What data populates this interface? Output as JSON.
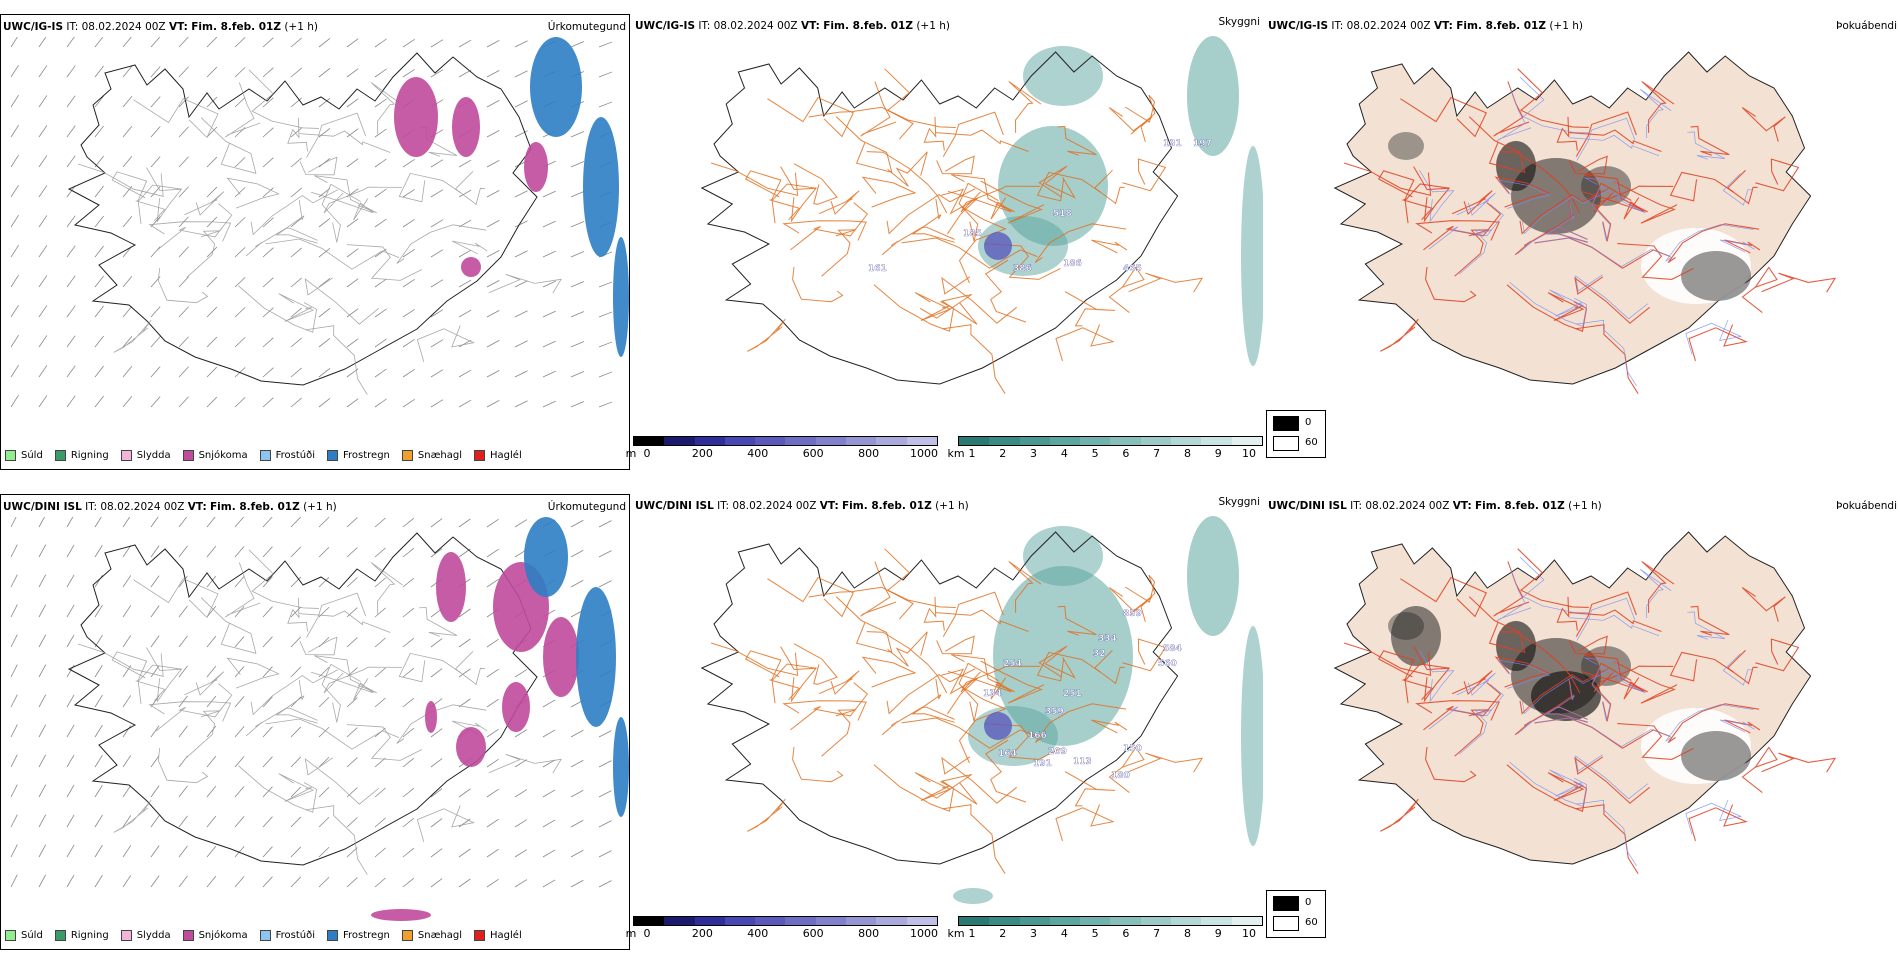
{
  "rows": [
    {
      "model": "UWC/IG-IS",
      "it_label": "IT:",
      "it_value": "08.02.2024 00Z",
      "vt_label": "VT:",
      "vt_value": "Fim. 8.feb. 01Z",
      "offset": "(+1 h)",
      "panel_titles": [
        "Úrkomutegund",
        "Skyggni",
        "Þokuábendi"
      ],
      "cloud_labels": [
        "518",
        "186",
        "386",
        "465",
        "197",
        "131",
        "185",
        "161"
      ],
      "cloud_values": [
        518,
        186,
        386,
        465,
        197,
        131,
        185,
        161
      ]
    },
    {
      "model": "UWC/DINI ISL",
      "it_label": "IT:",
      "it_value": "08.02.2024 00Z",
      "vt_label": "VT:",
      "vt_value": "Fim. 8.feb. 01Z",
      "offset": "(+1 h)",
      "panel_titles": [
        "Úrkomutegund",
        "Skyggni",
        "Þokuábendi"
      ],
      "cloud_labels": [
        "859",
        "334",
        "584",
        "560",
        "32",
        "254",
        "251",
        "359",
        "166",
        "164",
        "209",
        "191",
        "113",
        "150",
        "180",
        "134"
      ],
      "cloud_values": [
        859,
        334,
        584,
        560,
        32,
        254,
        251,
        359,
        166,
        164,
        209,
        191,
        113,
        150,
        180,
        134
      ]
    }
  ],
  "precip_legend": [
    {
      "label": "Súld",
      "color": "#90ee90"
    },
    {
      "label": "Rigning",
      "color": "#3a9a68"
    },
    {
      "label": "Slydda",
      "color": "#f4b6d6"
    },
    {
      "label": "Snjókoma",
      "color": "#c04a9c"
    },
    {
      "label": "Frostúði",
      "color": "#8ec4f0"
    },
    {
      "label": "Frostregn",
      "color": "#2e7ec4"
    },
    {
      "label": "Snæhagl",
      "color": "#f0a030"
    },
    {
      "label": "Haglél",
      "color": "#e02020"
    }
  ],
  "cloud_colorbar": {
    "unit": "m",
    "ticks": [
      "0",
      "200",
      "400",
      "600",
      "800",
      "1000"
    ],
    "colors": [
      "#000000",
      "#1a1a6e",
      "#2e2e9a",
      "#4848b4",
      "#5a5abc",
      "#6d6dc4",
      "#8080cc",
      "#9595d4",
      "#aaaadc",
      "#c0c0e6"
    ]
  },
  "visibility_colorbar": {
    "unit": "km",
    "ticks": [
      "1",
      "2",
      "3",
      "4",
      "5",
      "6",
      "7",
      "8",
      "9",
      "10"
    ],
    "colors": [
      "#2a7a74",
      "#3a8a84",
      "#4a9892",
      "#5ca6a0",
      "#70b2ad",
      "#86beba",
      "#9ccac7",
      "#b2d7d4",
      "#c9e4e2",
      "#e2f1f0"
    ]
  },
  "fog_legend": {
    "items": [
      {
        "label": "0",
        "color": "#000000"
      },
      {
        "label": "60",
        "color": "#ffffff"
      }
    ]
  }
}
